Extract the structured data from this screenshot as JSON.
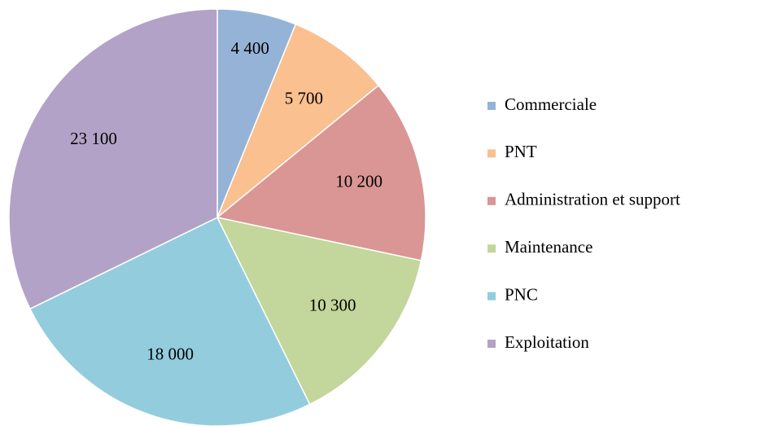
{
  "chart_data": {
    "type": "pie",
    "categories": [
      "Commerciale",
      "PNT",
      "Administration et support",
      "Maintenance",
      "PNC",
      "Exploitation"
    ],
    "values": [
      4400,
      5700,
      10200,
      10300,
      18000,
      23100
    ],
    "value_labels": [
      "4 400",
      "5 700",
      "10 200",
      "10 300",
      "18 000",
      "23 100"
    ],
    "colors": [
      "#95b3d7",
      "#fac090",
      "#d99694",
      "#c3d69b",
      "#93cddd",
      "#b3a2c7"
    ],
    "legend": "right"
  }
}
